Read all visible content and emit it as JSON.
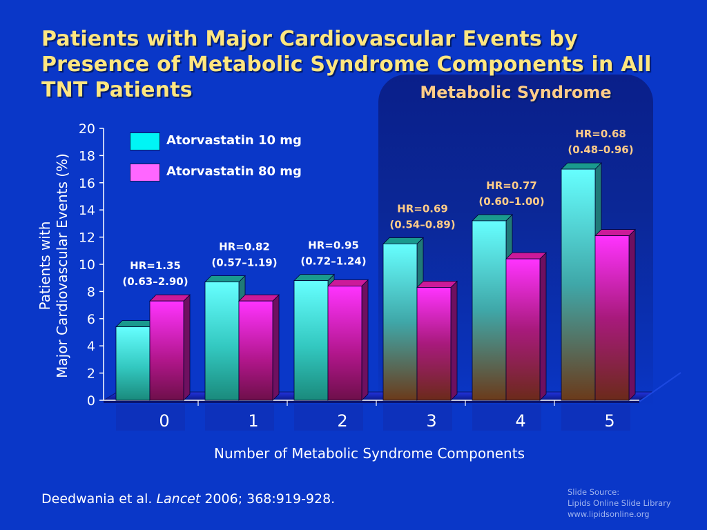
{
  "title": "Patients with Major Cardiovascular Events by Presence of Metabolic Syndrome Components in All TNT Patients",
  "panel_label": "Metabolic Syndrome",
  "citation": {
    "authors": "Deedwania et al. ",
    "journal": "Lancet",
    "details": " 2006; 368:919-928."
  },
  "source": {
    "line1": "Slide Source:",
    "line2": "Lipids Online Slide Library",
    "line3": "www.lipidsonline.org"
  },
  "legend": [
    {
      "label": "Atorvastatin 10 mg",
      "color": "#00f5f5"
    },
    {
      "label": "Atorvastatin 80 mg",
      "color": "#ff66ff"
    }
  ],
  "colors": {
    "background": "#0a37c8",
    "title": "#ffe680",
    "panel_title": "#ffcc88",
    "hr_label_plain": "#ffffff",
    "hr_label_ms": "#ffcc88"
  },
  "chart_data": {
    "type": "bar",
    "xlabel": "Number of Metabolic Syndrome Components",
    "ylabel_line1": "Patients with",
    "ylabel_line2": "Major Cardiovascular Events (%)",
    "ylim": [
      0,
      20
    ],
    "yticks": [
      0,
      2,
      4,
      6,
      8,
      10,
      12,
      14,
      16,
      18,
      20
    ],
    "categories": [
      "0",
      "1",
      "2",
      "3",
      "4",
      "5"
    ],
    "series": [
      {
        "name": "Atorvastatin 10 mg",
        "values": [
          5.4,
          8.7,
          8.8,
          11.5,
          13.2,
          17.0
        ]
      },
      {
        "name": "Atorvastatin 80 mg",
        "values": [
          7.3,
          7.3,
          8.4,
          8.3,
          10.4,
          12.1
        ]
      }
    ],
    "annotations": [
      {
        "hr": "HR=1.35",
        "ci": "(0.63–2.90)"
      },
      {
        "hr": "HR=0.82",
        "ci": "(0.57–1.19)"
      },
      {
        "hr": "HR=0.95",
        "ci": "(0.72–1.24)"
      },
      {
        "hr": "HR=0.69",
        "ci": "(0.54–0.89)"
      },
      {
        "hr": "HR=0.77",
        "ci": "(0.60–1.00)"
      },
      {
        "hr": "HR=0.68",
        "ci": "(0.48–0.96)"
      }
    ],
    "metabolic_syndrome_categories": [
      "3",
      "4",
      "5"
    ]
  }
}
